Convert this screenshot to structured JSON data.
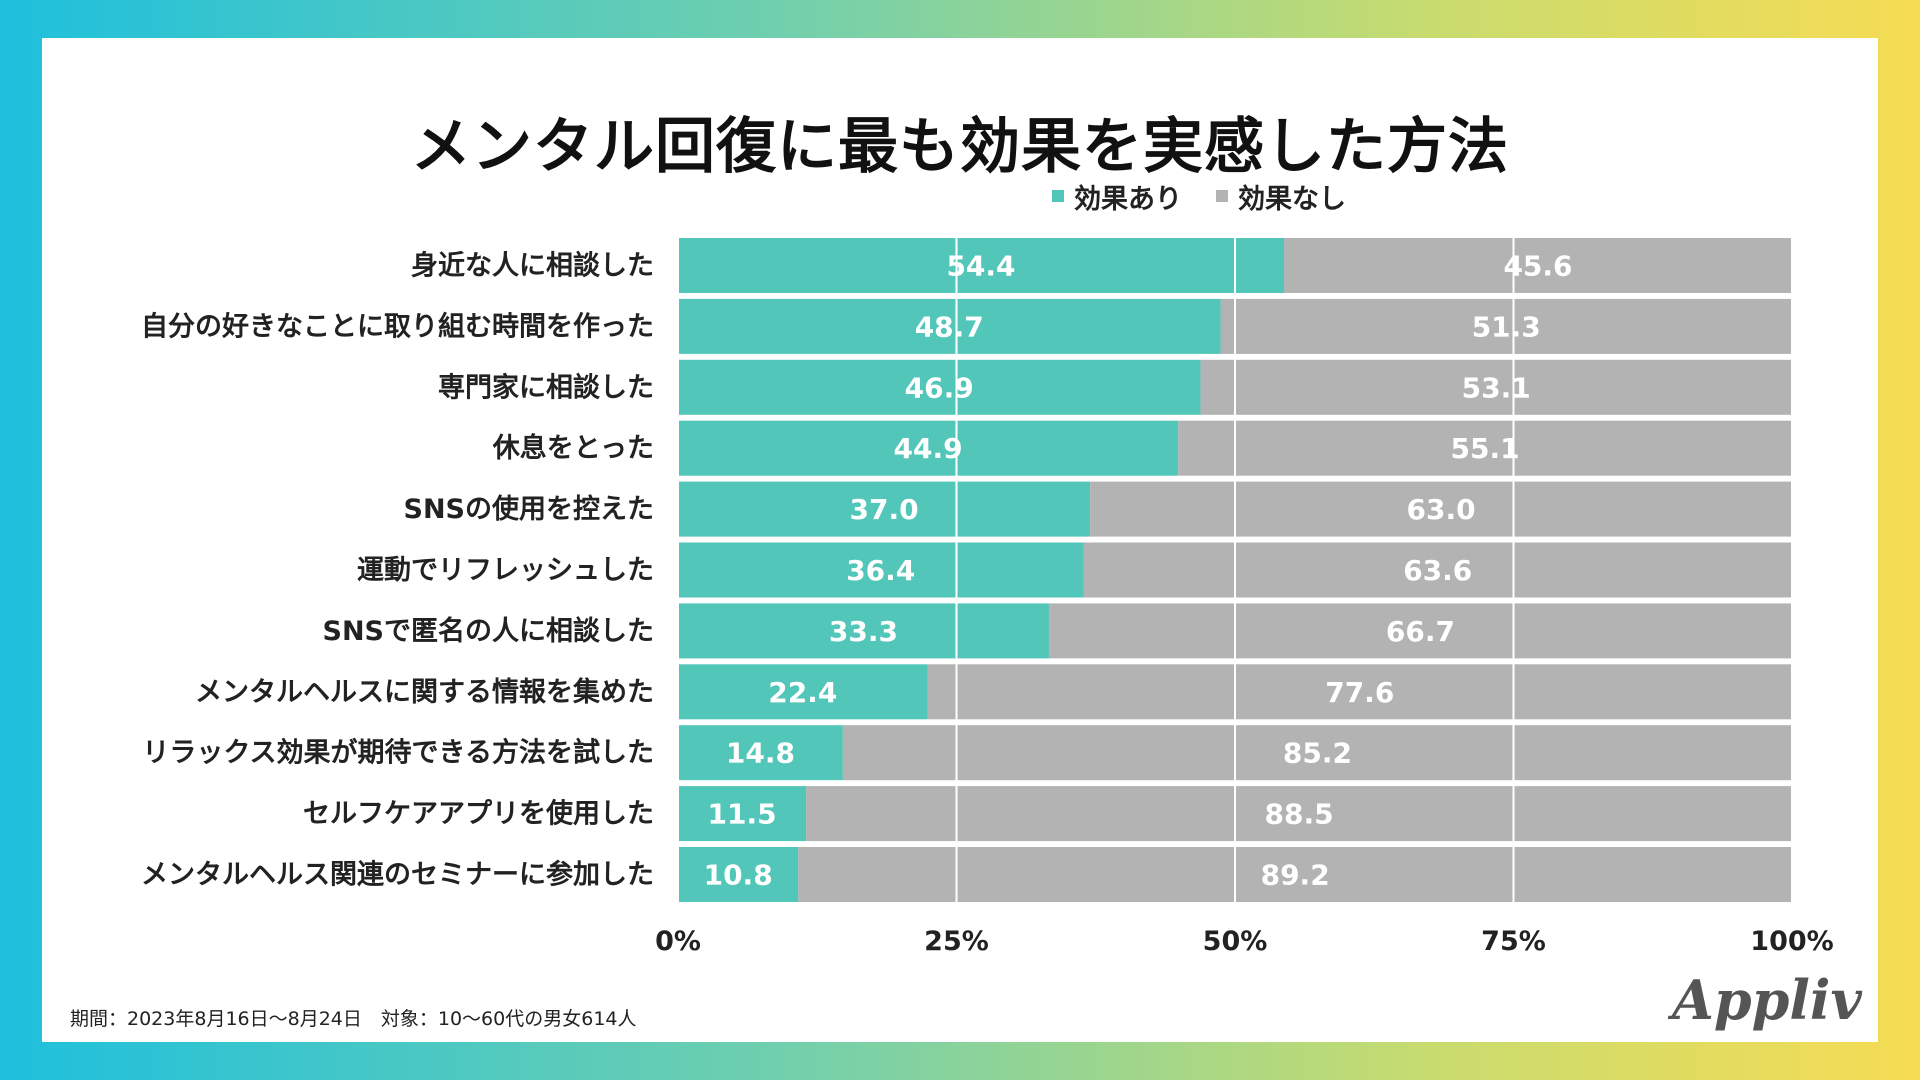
{
  "title": "メンタル回復に最も効果を実感した方法",
  "legend": [
    {
      "label": "効果あり",
      "color": "#52c6b9"
    },
    {
      "label": "効果なし",
      "color": "#b3b3b3"
    }
  ],
  "footer": "期間：2023年8月16日〜8月24日　対象：10〜60代の男女614人",
  "logo": "Appliv",
  "chart_data": {
    "type": "bar",
    "orientation": "horizontal",
    "stacked": true,
    "categories": [
      "身近な人に相談した",
      "自分の好きなことに取り組む時間を作った",
      "専門家に相談した",
      "休息をとった",
      "SNSの使用を控えた",
      "運動でリフレッシュした",
      "SNSで匿名の人に相談した",
      "メンタルヘルスに関する情報を集めた",
      "リラックス効果が期待できる方法を試した",
      "セルフケアアプリを使用した",
      "メンタルヘルス関連のセミナーに参加した"
    ],
    "series": [
      {
        "name": "効果あり",
        "color": "#52c6b9",
        "values": [
          "54.4",
          "48.7",
          "46.9",
          "44.9",
          "37.0",
          "36.4",
          "33.3",
          "22.4",
          "14.8",
          "11.5",
          "10.8"
        ]
      },
      {
        "name": "効果なし",
        "color": "#b3b3b3",
        "values": [
          "45.6",
          "51.3",
          "53.1",
          "55.1",
          "63.0",
          "63.6",
          "66.7",
          "77.6",
          "85.2",
          "88.5",
          "89.2"
        ]
      }
    ],
    "xlim": [
      0,
      100
    ],
    "ticks": [
      "0%",
      "25%",
      "50%",
      "75%",
      "100%"
    ],
    "tick_values": [
      0,
      25,
      50,
      75,
      100
    ],
    "grid": true
  }
}
